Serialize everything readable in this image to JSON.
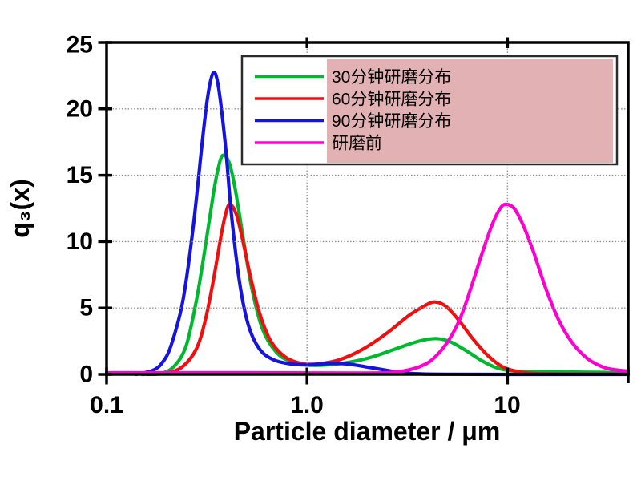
{
  "chart_data": {
    "type": "line",
    "title": "",
    "xlabel": "Particle diameter / μm",
    "ylabel": "q₃(x)",
    "xscale": "log",
    "xlim": [
      0.1,
      40
    ],
    "ylim": [
      0,
      25
    ],
    "grid": true,
    "grid_color": "#8f8f8f",
    "frame_color": "#000000",
    "legend_position": "top-right",
    "legend_highlight_color": "#e2b1b3",
    "xticks": [
      {
        "value": 0.1,
        "label": "0.1"
      },
      {
        "value": 1.0,
        "label": "1.0"
      },
      {
        "value": 10,
        "label": "10"
      }
    ],
    "yticks": [
      {
        "value": 0,
        "label": "0"
      },
      {
        "value": 5,
        "label": "5"
      },
      {
        "value": 10,
        "label": "10"
      },
      {
        "value": 15,
        "label": "15"
      },
      {
        "value": 20,
        "label": "20"
      },
      {
        "value": 25,
        "label": "25"
      }
    ],
    "series": [
      {
        "name": "30分钟研磨分布",
        "color": "#00b830",
        "points": [
          [
            0.15,
            0
          ],
          [
            0.19,
            0.1
          ],
          [
            0.22,
            0.7
          ],
          [
            0.25,
            2.2
          ],
          [
            0.28,
            5.5
          ],
          [
            0.31,
            9.5
          ],
          [
            0.34,
            13.5
          ],
          [
            0.36,
            15.5
          ],
          [
            0.38,
            16.5
          ],
          [
            0.41,
            15.9
          ],
          [
            0.44,
            13.8
          ],
          [
            0.48,
            10.3
          ],
          [
            0.53,
            6.5
          ],
          [
            0.6,
            3.4
          ],
          [
            0.7,
            1.7
          ],
          [
            0.82,
            1.0
          ],
          [
            1.0,
            0.7
          ],
          [
            1.25,
            0.72
          ],
          [
            1.6,
            0.9
          ],
          [
            2.1,
            1.3
          ],
          [
            2.8,
            1.95
          ],
          [
            3.6,
            2.5
          ],
          [
            4.4,
            2.7
          ],
          [
            5.2,
            2.45
          ],
          [
            6.2,
            1.8
          ],
          [
            7.5,
            1.0
          ],
          [
            9.0,
            0.45
          ],
          [
            11,
            0.25
          ],
          [
            14,
            0.2
          ],
          [
            20,
            0.18
          ],
          [
            30,
            0.15
          ],
          [
            40,
            0.12
          ]
        ]
      },
      {
        "name": "60分钟研磨分布",
        "color": "#ee1010",
        "points": [
          [
            0.16,
            0
          ],
          [
            0.2,
            0.1
          ],
          [
            0.24,
            0.6
          ],
          [
            0.28,
            1.9
          ],
          [
            0.31,
            4.0
          ],
          [
            0.34,
            7.0
          ],
          [
            0.37,
            10.2
          ],
          [
            0.39,
            11.9
          ],
          [
            0.41,
            12.8
          ],
          [
            0.44,
            12.2
          ],
          [
            0.47,
            10.6
          ],
          [
            0.52,
            7.5
          ],
          [
            0.58,
            4.6
          ],
          [
            0.66,
            2.5
          ],
          [
            0.78,
            1.3
          ],
          [
            0.95,
            0.8
          ],
          [
            1.15,
            0.8
          ],
          [
            1.45,
            1.1
          ],
          [
            1.9,
            1.9
          ],
          [
            2.5,
            3.1
          ],
          [
            3.2,
            4.4
          ],
          [
            3.8,
            5.1
          ],
          [
            4.3,
            5.45
          ],
          [
            4.9,
            5.15
          ],
          [
            5.7,
            4.1
          ],
          [
            6.7,
            2.7
          ],
          [
            8.0,
            1.4
          ],
          [
            9.5,
            0.55
          ],
          [
            11.5,
            0.18
          ],
          [
            14,
            0.06
          ],
          [
            20,
            0.03
          ],
          [
            40,
            0.02
          ]
        ]
      },
      {
        "name": "90分钟研磨分布",
        "color": "#1414dd",
        "points": [
          [
            0.14,
            0
          ],
          [
            0.17,
            0.3
          ],
          [
            0.19,
            0.9
          ],
          [
            0.21,
            2.2
          ],
          [
            0.24,
            5.5
          ],
          [
            0.27,
            11
          ],
          [
            0.3,
            17.5
          ],
          [
            0.32,
            21
          ],
          [
            0.34,
            22.7
          ],
          [
            0.36,
            21.8
          ],
          [
            0.39,
            17.5
          ],
          [
            0.42,
            12
          ],
          [
            0.46,
            7
          ],
          [
            0.51,
            3.7
          ],
          [
            0.58,
            1.9
          ],
          [
            0.68,
            1.1
          ],
          [
            0.82,
            0.8
          ],
          [
            1.0,
            0.72
          ],
          [
            1.3,
            0.82
          ],
          [
            1.6,
            0.78
          ],
          [
            2.0,
            0.55
          ],
          [
            2.5,
            0.3
          ],
          [
            3.0,
            0.12
          ],
          [
            3.8,
            0.03
          ],
          [
            5.0,
            0.01
          ],
          [
            10,
            0
          ],
          [
            40,
            0
          ]
        ]
      },
      {
        "name": "研磨前",
        "color": "#fd00d0",
        "points": [
          [
            0.1,
            0.12
          ],
          [
            0.5,
            0.12
          ],
          [
            1.0,
            0.11
          ],
          [
            1.8,
            0.1
          ],
          [
            2.5,
            0.12
          ],
          [
            3.0,
            0.25
          ],
          [
            3.6,
            0.55
          ],
          [
            4.2,
            1.1
          ],
          [
            5.0,
            2.4
          ],
          [
            5.8,
            4.2
          ],
          [
            6.6,
            6.6
          ],
          [
            7.5,
            9.2
          ],
          [
            8.4,
            11.3
          ],
          [
            9.2,
            12.5
          ],
          [
            9.8,
            12.8
          ],
          [
            10.8,
            12.5
          ],
          [
            12,
            11.2
          ],
          [
            13.5,
            9.2
          ],
          [
            15.5,
            6.5
          ],
          [
            18,
            4.1
          ],
          [
            21,
            2.4
          ],
          [
            25,
            1.2
          ],
          [
            30,
            0.55
          ],
          [
            35,
            0.33
          ],
          [
            40,
            0.25
          ]
        ]
      }
    ]
  }
}
